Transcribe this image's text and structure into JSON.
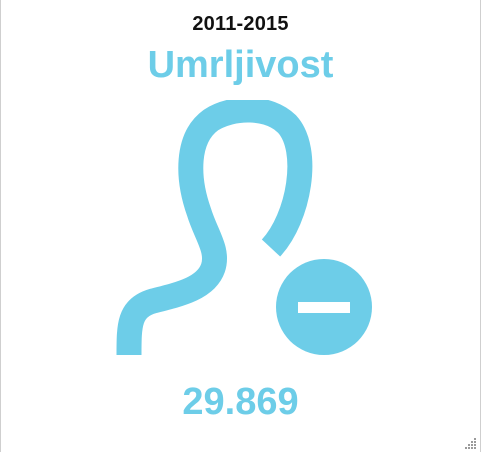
{
  "widget": {
    "period": "2011-2015",
    "title": "Umrljivost",
    "value": "29.869",
    "icon": "user-minus-icon",
    "accent_color": "#6dcde8"
  }
}
